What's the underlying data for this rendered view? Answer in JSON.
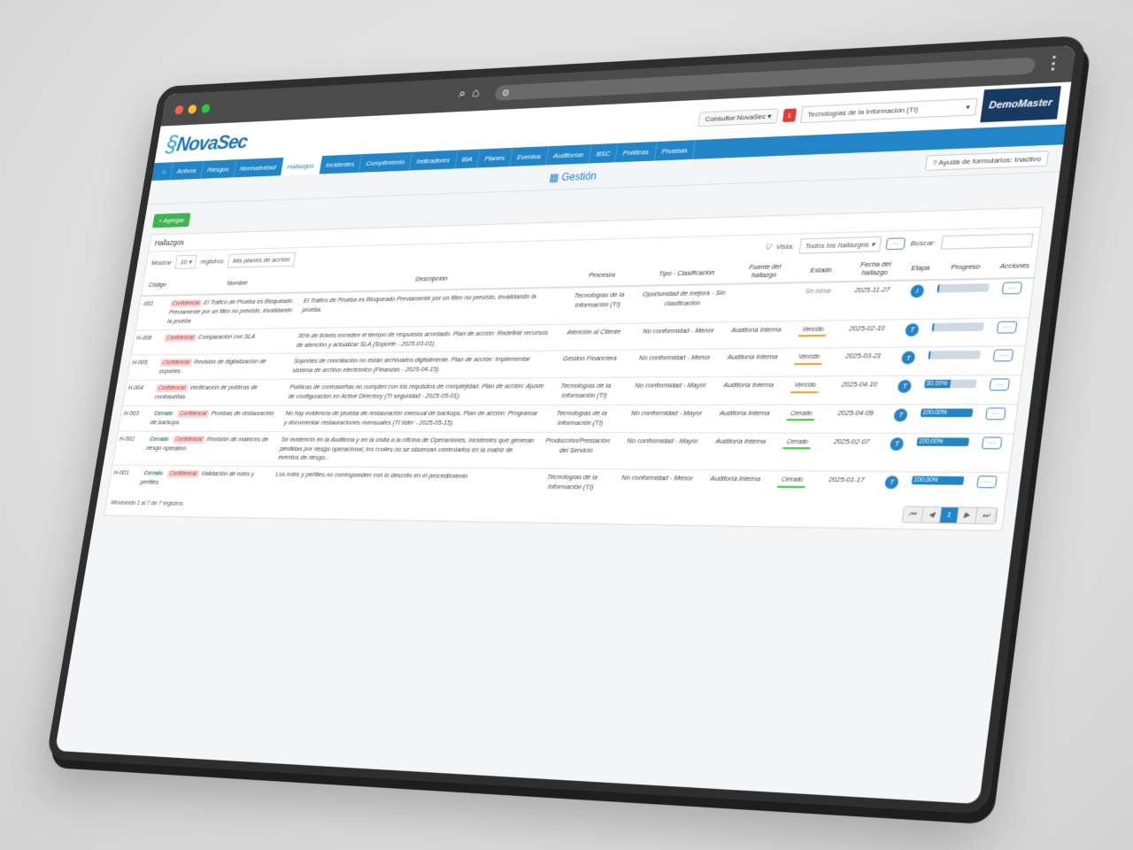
{
  "browser": {
    "menu_icon": "kebab-icon"
  },
  "header": {
    "logo": "NovaSec",
    "user": "Consultor NovaSec ▾",
    "notifications": "1",
    "area_select": "Tecnologías de la Información (TI)",
    "brand": "DemoMaster"
  },
  "nav": [
    "Activos",
    "Riesgos",
    "Normatividad",
    "Hallazgos",
    "Incidentes",
    "Cumplimiento",
    "Indicadores",
    "BIA",
    "Planes",
    "Eventos",
    "Auditorías",
    "BSC",
    "Políticas",
    "Pruebas"
  ],
  "nav_active": "Hallazgos",
  "section": {
    "title": "Gestión",
    "help": "Ayuda de formularios: Inactivo"
  },
  "card": {
    "add": "+ Agregar",
    "title": "Hallazgos",
    "show_label": "Mostrar",
    "show_value": "10",
    "records_label": "registros",
    "my_plans": "Mis planes de acción",
    "view_label": "Vista:",
    "view_value": "Todos los hallazgos",
    "search_label": "Buscar:",
    "search_value": ""
  },
  "table": {
    "columns": [
      "Código",
      "Nombre",
      "Descripción",
      "Procesos",
      "Tipo - Clasificación",
      "Fuente del hallazgo",
      "Estado",
      "Fecha del hallazgo",
      "Etapa",
      "Progreso",
      "Acciones"
    ],
    "rows": [
      {
        "codigo": "-001",
        "badges": [
          "Confidencial"
        ],
        "nombre": "El Tráfico de Prueba es Bloqueado Previamente por un filtro no previsto, invalidando la prueba",
        "descripcion": "El Tráfico de Prueba es Bloqueado Previamente por un filtro no previsto, invalidando la prueba.",
        "procesos": "Tecnologías de la Información (TI)",
        "tipo": "Oportunidad de mejora - Sin clasificación",
        "fuente": "",
        "estado": "Sin iniciar",
        "fecha": "2025-11-27",
        "etapa": "I",
        "progreso": 0,
        "progreso_label": ""
      },
      {
        "codigo": "H-008",
        "badges": [
          "Confidencial"
        ],
        "nombre": "Comparación con SLA",
        "descripcion": "30% de tickets exceden el tiempo de respuesta acordado. Plan de acción: Redefinir recursos de atención y actualizar SLA (Soporte - 2025-03-01).",
        "procesos": "Atención al Cliente",
        "tipo": "No conformidad - Menor",
        "fuente": "Auditoría Interna",
        "estado": "Vencido",
        "fecha": "2025-02-10",
        "etapa": "T",
        "progreso": 0,
        "progreso_label": ""
      },
      {
        "codigo": "H-005",
        "badges": [
          "Confidencial"
        ],
        "nombre": "Revisión de digitalización de soportes",
        "descripcion": "Soportes de conciliación no están archivados digitalmente. Plan de acción: Implementar sistema de archivo electrónico (Finanzas - 2025-04-15).",
        "procesos": "Gestión Financiera",
        "tipo": "No conformidad - Menor",
        "fuente": "Auditoría Interna",
        "estado": "Vencido",
        "fecha": "2025-03-21",
        "etapa": "T",
        "progreso": 0,
        "progreso_label": ""
      },
      {
        "codigo": "H-004",
        "badges": [
          "Confidencial"
        ],
        "nombre": "Verificación de políticas de contraseñas",
        "descripcion": "Políticas de contraseñas no cumplen con los requisitos de complejidad. Plan de acción: Ajuste de configuración en Active Directory (TI seguridad - 2025-05-01).",
        "procesos": "Tecnologías de la Información (TI)",
        "tipo": "No conformidad - Mayor",
        "fuente": "Auditoría Interna",
        "estado": "Vencido",
        "fecha": "2025-04-10",
        "etapa": "T",
        "progreso": 50,
        "progreso_label": "50.00%"
      },
      {
        "codigo": "H-003",
        "badges": [
          "Cerrado",
          "Confidencial"
        ],
        "nombre": "Pruebas de restauración de backups",
        "descripcion": "No hay evidencia de prueba de restauración mensual de backups. Plan de acción: Programar y documentar restauraciones mensuales (TI líder - 2025-05-15).",
        "procesos": "Tecnologías de la Información (TI)",
        "tipo": "No conformidad - Mayor",
        "fuente": "Auditoría Interna",
        "estado": "Cerrado",
        "fecha": "2025-04-09",
        "etapa": "T",
        "progreso": 100,
        "progreso_label": "100.00%"
      },
      {
        "codigo": "H-002",
        "badges": [
          "Cerrado",
          "Confidencial"
        ],
        "nombre": "Revisión de matrices de riesgo operativo",
        "descripcion": "Se evidenció en la Auditoría y en la visita a la oficina de Operaciones, incidentes que generan pérdidas por riesgo operacional, los cuales no se observan controlados en la matriz de eventos de riesgo...",
        "procesos": "Producción/Prestación del Servicio",
        "tipo": "No conformidad - Mayor",
        "fuente": "Auditoría Interna",
        "estado": "Cerrado",
        "fecha": "2025-02-07",
        "etapa": "T",
        "progreso": 100,
        "progreso_label": "100.00%"
      },
      {
        "codigo": "H-001",
        "badges": [
          "Cerrado",
          "Confidencial"
        ],
        "nombre": "Validación de roles y perfiles",
        "descripcion": "Los roles y perfiles no corresponden con lo descrito en el procedimiento",
        "procesos": "Tecnologías de la Información (TI)",
        "tipo": "No conformidad - Menor",
        "fuente": "Auditoría Interna",
        "estado": "Cerrado",
        "fecha": "2025-01-17",
        "etapa": "T",
        "progreso": 100,
        "progreso_label": "100.00%"
      }
    ],
    "action_label": "···"
  },
  "footer": {
    "info": "Mostrando 1 al 7 de 7 registros",
    "pages": [
      "⏮",
      "◀",
      "1",
      "▶",
      "⏭"
    ],
    "current_page": "1"
  },
  "colors": {
    "brand": "#2185c8",
    "vencido": "#f0a020",
    "cerrado": "#3ccf3c",
    "confidencial": "#c0392b",
    "add": "#3cb551"
  }
}
